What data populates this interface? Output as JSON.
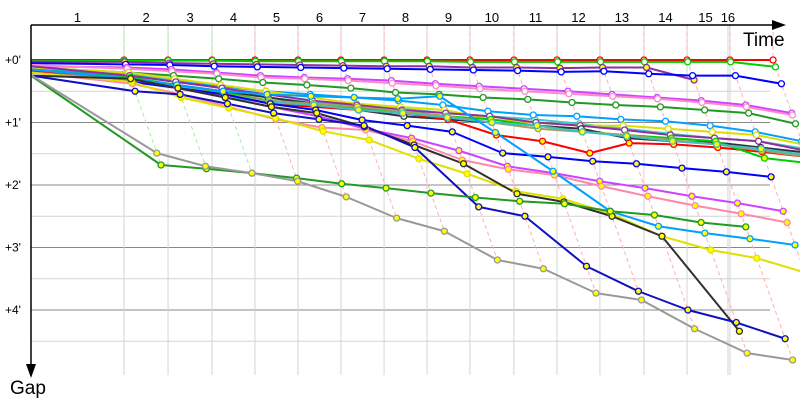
{
  "chart_data": {
    "type": "line",
    "xlabel": "Time",
    "ylabel": "Gap",
    "x_unit": "minutes",
    "y_unit": "minutes",
    "grid": true,
    "lap_labels": [
      "1",
      "2",
      "3",
      "4",
      "5",
      "6",
      "7",
      "8",
      "9",
      "10",
      "11",
      "12",
      "13",
      "14",
      "15",
      "16"
    ],
    "leader_lap_times": [
      4.23,
      6.23,
      8.23,
      10.18,
      12.14,
      14.09,
      16.05,
      18.0,
      19.95,
      21.95,
      23.91,
      25.86,
      27.86,
      29.82,
      31.77,
      33.73
    ],
    "y_ticks": [
      {
        "value": 0,
        "label": "+0'"
      },
      {
        "value": 1,
        "label": "+1'"
      },
      {
        "value": 2,
        "label": "+2'"
      },
      {
        "value": 3,
        "label": "+3'"
      },
      {
        "value": 4,
        "label": "+4'"
      }
    ],
    "ylim": [
      0,
      5
    ],
    "pit_dash_color_early": "#a8e8a8",
    "pit_dash_color_late": "#ffb0b0",
    "series": [
      {
        "color": "#ff0000",
        "marker": "#ffffff",
        "gaps": [
          0,
          0,
          0,
          0,
          0,
          0,
          0,
          0,
          0,
          0,
          0,
          0,
          0,
          0,
          0,
          0,
          0
        ]
      },
      {
        "color": "#00cc00",
        "marker": "#ffffff",
        "gaps": [
          0.02,
          0.01,
          0.01,
          0.01,
          0.02,
          0.02,
          0.02,
          0.02,
          0.02,
          0.03,
          0.03,
          0.03,
          0.03,
          0.03,
          0.03,
          0.03,
          0.11
        ]
      },
      {
        "color": "#8e30a0",
        "marker": "#ffff00",
        "gaps": [
          0.03,
          0.03,
          0.05,
          0.06,
          0.07,
          0.08,
          0.09,
          0.1,
          0.1,
          0.12,
          0.12,
          0.13,
          0.12,
          0.12,
          0.32
        ]
      },
      {
        "color": "#0000ff",
        "marker": "#ffffff",
        "gaps": [
          0.05,
          0.07,
          0.08,
          0.1,
          0.11,
          0.12,
          0.13,
          0.14,
          0.15,
          0.16,
          0.17,
          0.19,
          0.18,
          0.22,
          0.25,
          0.25,
          0.38
        ]
      },
      {
        "color": "#cc44ff",
        "marker": "#ffffff",
        "gaps": [
          0.1,
          0.12,
          0.15,
          0.2,
          0.25,
          0.28,
          0.3,
          0.33,
          0.38,
          0.42,
          0.46,
          0.5,
          0.55,
          0.6,
          0.65,
          0.72,
          0.85
        ]
      },
      {
        "color": "#ff88cc",
        "marker": "#ffffff",
        "gaps": [
          0.08,
          0.14,
          0.18,
          0.22,
          0.28,
          0.3,
          0.33,
          0.37,
          0.41,
          0.46,
          0.5,
          0.54,
          0.58,
          0.62,
          0.68,
          0.75,
          0.88
        ]
      },
      {
        "color": "#229922",
        "marker": "#ffffff",
        "gaps": [
          0.12,
          0.2,
          0.25,
          0.3,
          0.36,
          0.4,
          0.45,
          0.52,
          0.55,
          0.6,
          0.63,
          0.68,
          0.72,
          0.75,
          0.8,
          0.85,
          1.02
        ]
      },
      {
        "color": "#40c8c8",
        "marker": "#ffffff",
        "gaps": [
          0.12,
          0.22,
          0.32,
          0.45,
          0.6,
          0.68,
          0.72,
          0.78,
          0.85,
          0.9,
          0.95,
          1.02,
          1.1,
          1.18,
          1.25,
          1.3,
          1.42
        ]
      },
      {
        "color": "#00a0ff",
        "marker": "#ffffff",
        "gaps": [
          0.15,
          0.25,
          0.35,
          0.42,
          0.5,
          0.55,
          0.6,
          0.65,
          0.72,
          0.82,
          0.88,
          0.9,
          0.95,
          0.98,
          1.05,
          1.15,
          1.3
        ]
      },
      {
        "color": "#dddd00",
        "marker": "#ffffff",
        "gaps": [
          0.12,
          0.2,
          0.3,
          0.4,
          0.5,
          0.6,
          0.7,
          0.75,
          0.8,
          0.95,
          1.0,
          1.05,
          1.05,
          1.1,
          1.15,
          1.2,
          1.35
        ]
      },
      {
        "color": "#9030a0",
        "marker": "#ffffff",
        "gaps": [
          0.1,
          0.25,
          0.35,
          0.45,
          0.55,
          0.65,
          0.72,
          0.8,
          0.85,
          0.9,
          1.0,
          1.05,
          1.12,
          1.2,
          1.25,
          1.3,
          1.45
        ]
      },
      {
        "color": "#303040",
        "marker": "#ffffff",
        "gaps": [
          0.2,
          0.3,
          0.4,
          0.5,
          0.6,
          0.7,
          0.8,
          0.9,
          0.95,
          1.0,
          1.05,
          1.1,
          1.25,
          1.3,
          1.32,
          1.4,
          1.48
        ]
      },
      {
        "color": "#ff0000",
        "marker": "#ffff00",
        "gaps": [
          0.18,
          0.3,
          0.45,
          0.55,
          0.7,
          0.75,
          0.8,
          0.85,
          0.95,
          1.2,
          1.3,
          1.49,
          1.33,
          1.35,
          1.4,
          1.47,
          1.55
        ]
      },
      {
        "color": "#00cc00",
        "marker": "#ffff00",
        "gaps": [
          0.15,
          0.28,
          0.4,
          0.52,
          0.65,
          0.72,
          0.78,
          0.82,
          0.9,
          0.95,
          1.05,
          1.15,
          1.2,
          1.25,
          1.3,
          1.57,
          1.65
        ]
      },
      {
        "color": "#a0a060",
        "marker": "#ffff00",
        "gaps": [
          0.2,
          0.32,
          0.42,
          0.55,
          0.65,
          0.7,
          0.75,
          0.82,
          0.9,
          1.0,
          1.1,
          1.15,
          1.2,
          1.28,
          1.35,
          1.45,
          1.55
        ]
      },
      {
        "color": "#40c0c0",
        "marker": "#ffff00",
        "gaps": [
          0.15,
          0.3,
          0.42,
          0.6,
          0.68,
          0.72,
          0.8,
          0.85,
          0.92,
          1.0,
          1.05,
          1.15,
          1.22,
          1.3,
          1.35,
          1.42,
          1.52
        ]
      },
      {
        "color": "#0000ff",
        "marker": "#ffff00",
        "gaps": [
          0.2,
          0.35,
          0.45,
          0.55,
          0.7,
          0.8,
          0.96,
          1.05,
          1.15,
          1.49,
          1.55,
          1.62,
          1.66,
          1.73,
          1.79,
          1.87
        ]
      },
      {
        "color": "#cc44ff",
        "marker": "#ffff00",
        "gaps": [
          0.15,
          0.3,
          0.45,
          0.6,
          0.75,
          0.9,
          1.1,
          1.25,
          1.45,
          1.7,
          1.81,
          1.94,
          2.05,
          2.18,
          2.29,
          2.42
        ]
      },
      {
        "color": "#ff88aa",
        "marker": "#ffff00",
        "gaps": [
          0.2,
          0.38,
          0.55,
          0.75,
          0.95,
          1.08,
          1.12,
          1.3,
          1.6,
          1.75,
          1.84,
          2.02,
          2.18,
          2.33,
          2.46,
          2.6
        ]
      },
      {
        "color": "#00a0ff",
        "marker": "#ffff00",
        "gaps": [
          0.15,
          0.3,
          0.4,
          0.5,
          0.55,
          0.58,
          0.6,
          0.62,
          0.58,
          1.16,
          1.78,
          2.42,
          2.66,
          2.77,
          2.86,
          2.96
        ]
      },
      {
        "color": "#e0e000",
        "marker": "#ffff00",
        "gaps": [
          0.2,
          0.35,
          0.6,
          0.77,
          0.93,
          1.14,
          1.28,
          1.58,
          1.82,
          2.1,
          2.22,
          2.46,
          2.82,
          3.04,
          3.17,
          3.4
        ]
      },
      {
        "color": "#303030",
        "marker": "#ffff00",
        "gaps": [
          0.25,
          0.3,
          0.45,
          0.6,
          0.75,
          0.85,
          1.07,
          1.36,
          1.66,
          2.14,
          2.27,
          2.5,
          2.82,
          4.34
        ]
      },
      {
        "color": "#1010c0",
        "marker": "#ffff00",
        "gaps": [
          0.25,
          0.5,
          0.55,
          0.7,
          0.85,
          0.95,
          1.05,
          1.4,
          2.35,
          2.5,
          3.3,
          3.7,
          4.0,
          4.2,
          4.46
        ]
      },
      {
        "color": "#229922",
        "marker": "#ffff00",
        "gaps": [
          0.25,
          1.68,
          1.74,
          1.81,
          1.89,
          1.98,
          2.05,
          2.13,
          2.2,
          2.26,
          2.3,
          2.42,
          2.48,
          2.6,
          2.67
        ]
      },
      {
        "color": "#999999",
        "marker": "#ffff00",
        "gaps": [
          0.24,
          1.49,
          1.7,
          1.81,
          1.94,
          2.19,
          2.53,
          2.74,
          3.2,
          3.34,
          3.73,
          3.84,
          4.3,
          4.69,
          4.8
        ]
      }
    ]
  }
}
